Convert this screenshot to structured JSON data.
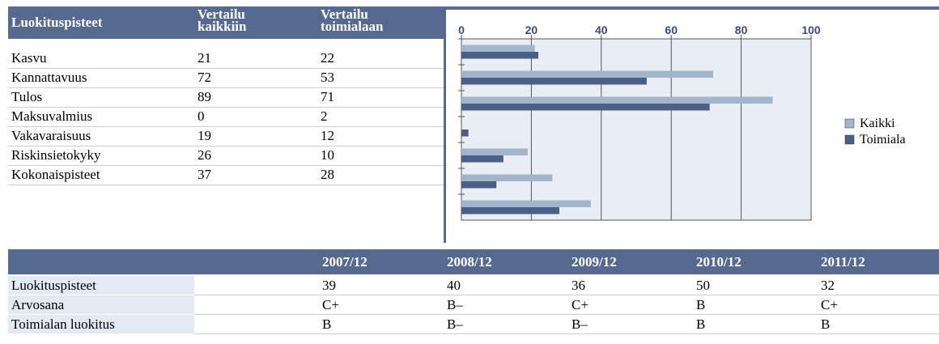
{
  "table": {
    "headers": [
      "Luokituspisteet",
      "Vertailu kaikkiin",
      "Vertailu toimialaan"
    ]
  },
  "chart_data": {
    "type": "barh",
    "categories": [
      "Kasvu",
      "Kannattavuus",
      "Tulos",
      "Maksuvalmius",
      "Vakavaraisuus",
      "Riskinsietokyky",
      "Kokonaispisteet"
    ],
    "series": [
      {
        "name": "Kaikki",
        "color": "#a0b6c8",
        "values": [
          21,
          72,
          89,
          0,
          19,
          26,
          37
        ]
      },
      {
        "name": "Toimiala",
        "color": "#4b5f86",
        "values": [
          22,
          53,
          71,
          2,
          12,
          10,
          28
        ]
      }
    ],
    "xlim": [
      0,
      100
    ],
    "xticks": [
      0,
      20,
      40,
      60,
      80,
      100
    ],
    "grid": true,
    "legend": "right"
  },
  "history": {
    "columns": [
      "2007/12",
      "2008/12",
      "2009/12",
      "2010/12",
      "2011/12"
    ],
    "rows": [
      {
        "label": "Luokituspisteet",
        "values": [
          39,
          40,
          36,
          50,
          32
        ]
      },
      {
        "label": "Arvosana",
        "values": [
          "C+",
          "B–",
          "C+",
          "B",
          "C+"
        ]
      },
      {
        "label": "Toimialan luokitus",
        "values": [
          "B",
          "B–",
          "B–",
          "B",
          "B"
        ]
      }
    ]
  }
}
